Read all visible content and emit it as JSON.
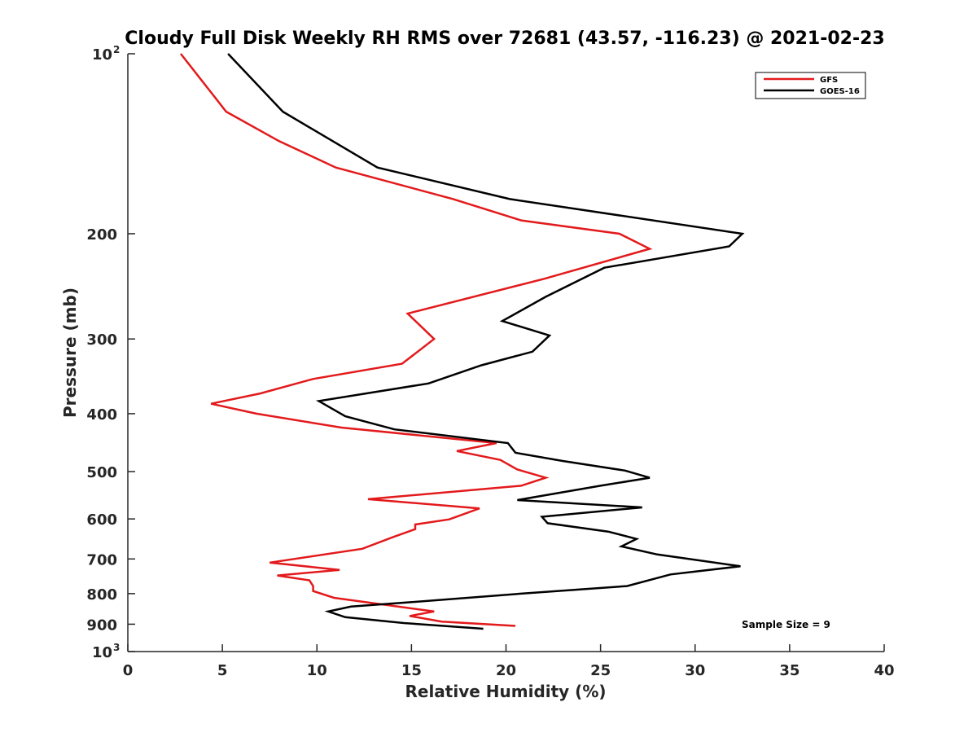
{
  "chart_data": {
    "type": "line",
    "title": "Cloudy Full Disk Weekly RH RMS over 72681 (43.57, -116.23) @ 2021-02-23",
    "xlabel": "Relative Humidity (%)",
    "ylabel": "Pressure (mb)",
    "xlim": [
      0,
      40
    ],
    "ylim": [
      100,
      1000
    ],
    "y_scale": "log",
    "y_reversed": true,
    "x_ticks": [
      "0",
      "5",
      "10",
      "15",
      "20",
      "25",
      "30",
      "35",
      "40"
    ],
    "y_ticks": [
      {
        "value": 100,
        "label": "10",
        "exp": "2"
      },
      {
        "value": 200,
        "label": "200"
      },
      {
        "value": 300,
        "label": "300"
      },
      {
        "value": 400,
        "label": "400"
      },
      {
        "value": 500,
        "label": "500"
      },
      {
        "value": 600,
        "label": "600"
      },
      {
        "value": 700,
        "label": "700"
      },
      {
        "value": 800,
        "label": "800"
      },
      {
        "value": 900,
        "label": "900"
      },
      {
        "value": 1000,
        "label": "10",
        "exp": "3"
      }
    ],
    "legend_position": "top-right",
    "grid": false,
    "annotation": "Sample Size = 9",
    "series": [
      {
        "name": "GFS",
        "color": "#e31a1c",
        "points": [
          [
            2.8,
            100
          ],
          [
            5.2,
            125
          ],
          [
            8,
            140
          ],
          [
            11,
            155
          ],
          [
            17.2,
            175
          ],
          [
            20.8,
            190
          ],
          [
            26,
            200
          ],
          [
            27.6,
            212
          ],
          [
            22,
            238
          ],
          [
            14.8,
            272
          ],
          [
            16.2,
            300
          ],
          [
            14.5,
            330
          ],
          [
            9.8,
            350
          ],
          [
            7,
            370
          ],
          [
            4.4,
            385
          ],
          [
            6.8,
            400
          ],
          [
            11.3,
            422
          ],
          [
            19.5,
            448
          ],
          [
            17.4,
            462
          ],
          [
            19.7,
            478
          ],
          [
            20.6,
            496
          ],
          [
            22.1,
            512
          ],
          [
            20.8,
            528
          ],
          [
            12.7,
            556
          ],
          [
            18.6,
            576
          ],
          [
            17,
            601
          ],
          [
            15.2,
            613
          ],
          [
            15.2,
            624
          ],
          [
            14,
            644
          ],
          [
            12.4,
            673
          ],
          [
            7.5,
            710
          ],
          [
            11.2,
            730
          ],
          [
            7.9,
            746
          ],
          [
            9.6,
            760
          ],
          [
            9.8,
            777
          ],
          [
            9.8,
            792
          ],
          [
            10.9,
            813
          ],
          [
            16.2,
            857
          ],
          [
            14.9,
            872
          ],
          [
            16.6,
            891
          ],
          [
            20.5,
            906
          ]
        ]
      },
      {
        "name": "GOES-16",
        "color": "#000000",
        "points": [
          [
            5.3,
            100
          ],
          [
            8.2,
            125
          ],
          [
            13.2,
            155
          ],
          [
            20.2,
            175
          ],
          [
            32.5,
            200
          ],
          [
            31.8,
            210
          ],
          [
            25.2,
            228
          ],
          [
            22.1,
            255
          ],
          [
            19.8,
            280
          ],
          [
            22.3,
            296
          ],
          [
            21.4,
            315
          ],
          [
            18.7,
            332
          ],
          [
            15.9,
            356
          ],
          [
            10.1,
            381
          ],
          [
            11.5,
            404
          ],
          [
            14.1,
            425
          ],
          [
            20.1,
            448
          ],
          [
            20.5,
            465
          ],
          [
            23,
            480
          ],
          [
            26.3,
            498
          ],
          [
            27.6,
            512
          ],
          [
            25,
            528
          ],
          [
            20.6,
            558
          ],
          [
            27.2,
            574
          ],
          [
            21.9,
            595
          ],
          [
            22.2,
            610
          ],
          [
            25.4,
            630
          ],
          [
            26.9,
            648
          ],
          [
            26.1,
            667
          ],
          [
            28,
            688
          ],
          [
            32.4,
            720
          ],
          [
            28.7,
            743
          ],
          [
            26.4,
            777
          ],
          [
            20.8,
            800
          ],
          [
            15.1,
            826
          ],
          [
            11.8,
            841
          ],
          [
            10.6,
            857
          ],
          [
            11.5,
            876
          ],
          [
            14.6,
            896
          ],
          [
            18.8,
            916
          ]
        ]
      }
    ]
  }
}
